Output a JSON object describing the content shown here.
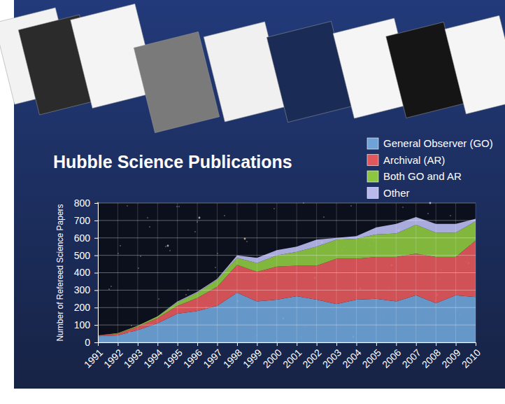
{
  "chart_data": {
    "type": "area",
    "stacked": true,
    "title": "Hubble Science Publications",
    "y_label": "Number of Refereed Science Papers",
    "x": [
      1991,
      1992,
      1993,
      1994,
      1995,
      1996,
      1997,
      1998,
      1999,
      2000,
      2001,
      2002,
      2003,
      2004,
      2005,
      2006,
      2007,
      2008,
      2009,
      2010
    ],
    "series": [
      {
        "name": "General Observer (GO)",
        "color": "#6fa3d8",
        "values": [
          35,
          40,
          70,
          110,
          165,
          180,
          210,
          285,
          235,
          245,
          265,
          245,
          220,
          245,
          250,
          235,
          270,
          225,
          270,
          260
        ]
      },
      {
        "name": "Archival (AR)",
        "color": "#e2575b",
        "values": [
          5,
          10,
          20,
          30,
          45,
          75,
          110,
          160,
          170,
          190,
          175,
          195,
          260,
          235,
          240,
          255,
          240,
          265,
          220,
          325
        ]
      },
      {
        "name": "Both GO and AR",
        "color": "#8dc641",
        "values": [
          0,
          3,
          5,
          10,
          20,
          30,
          40,
          40,
          50,
          65,
          80,
          110,
          110,
          115,
          130,
          135,
          165,
          140,
          140,
          110
        ]
      },
      {
        "name": "Other",
        "color": "#b9b9ee",
        "values": [
          0,
          0,
          0,
          0,
          5,
          5,
          5,
          15,
          30,
          30,
          30,
          40,
          10,
          15,
          40,
          55,
          45,
          50,
          50,
          15
        ]
      }
    ],
    "xlim": [
      1991,
      2010
    ],
    "xticks": [
      1991,
      1992,
      1993,
      1994,
      1995,
      1996,
      1997,
      1998,
      1999,
      2000,
      2001,
      2002,
      2003,
      2004,
      2005,
      2006,
      2007,
      2008,
      2009,
      2010
    ],
    "ylim": [
      0,
      800
    ],
    "yticks": [
      0,
      100,
      200,
      300,
      400,
      500,
      600,
      700,
      800
    ],
    "grid": true,
    "legend": "top-right"
  }
}
